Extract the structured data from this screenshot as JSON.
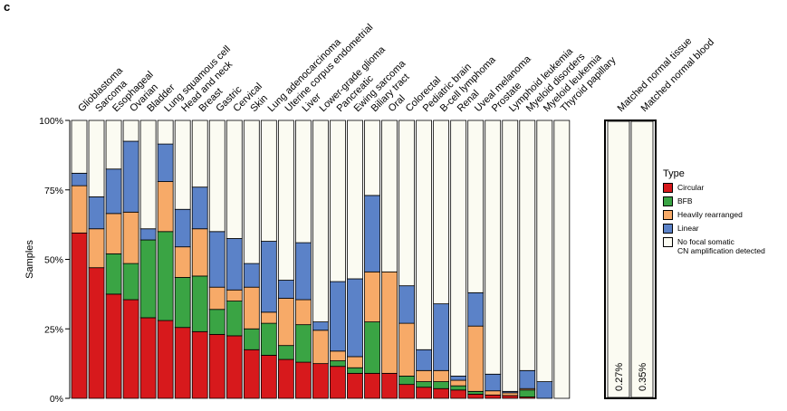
{
  "panel_letter": "c",
  "chart_data": {
    "type": "bar",
    "stacked": true,
    "ylabel": "Samples",
    "ylim": [
      0,
      100
    ],
    "yticks": [
      "0%",
      "25%",
      "50%",
      "75%",
      "100%"
    ],
    "legend": {
      "title": "Type",
      "position": "right",
      "entries": [
        {
          "label": "Circular",
          "color": "#d7191c"
        },
        {
          "label": "BFB",
          "color": "#3aa444"
        },
        {
          "label": "Heavily rearranged",
          "color": "#f7aa68"
        },
        {
          "label": "Linear",
          "color": "#5b82c8"
        },
        {
          "label": "No focal somatic\nCN amplification detected",
          "color": "#fbfbf2"
        }
      ]
    },
    "categories": [
      "Glioblastoma",
      "Sarcoma",
      "Esophageal",
      "Ovarian",
      "Bladder",
      "Lung squamous cell",
      "Head and neck",
      "Breast",
      "Gastric",
      "Cervical",
      "Skin",
      "Lung adenocarcinoma",
      "Uterine corpus endometrial",
      "Liver",
      "Lower-grade glioma",
      "Pancreatic",
      "Ewing sarcoma",
      "Biliary tract",
      "Oral",
      "Colorectal",
      "Pediatric brain",
      "B-cell lymphoma",
      "Renal",
      "Uveal melanoma",
      "Prostate",
      "Lymphoid leukemia",
      "Myeloid disorders",
      "Myeloid leukemia",
      "Thyroid papillary"
    ],
    "series": [
      {
        "name": "Circular",
        "color": "#d7191c",
        "values": [
          59.5,
          47,
          37.5,
          35.5,
          29,
          28,
          25.5,
          24,
          23,
          22.5,
          17.5,
          15.5,
          14,
          13,
          12.5,
          11.5,
          9,
          9,
          9,
          5,
          4,
          3.5,
          3,
          1.5,
          1.2,
          1,
          0.5,
          0,
          0
        ]
      },
      {
        "name": "BFB",
        "color": "#3aa444",
        "values": [
          0,
          0,
          14.5,
          13,
          28,
          32,
          18,
          20,
          9,
          12.5,
          7.5,
          11.5,
          5,
          13.5,
          0,
          2,
          2,
          18.5,
          0,
          3,
          2,
          2.5,
          1.5,
          1,
          0,
          0,
          2.5,
          0,
          0
        ]
      },
      {
        "name": "Heavily rearranged",
        "color": "#f7aa68",
        "values": [
          17,
          14,
          14.5,
          18.5,
          0,
          18,
          11,
          17,
          8,
          4,
          15,
          4,
          17,
          9,
          12,
          3.5,
          4,
          18,
          36.5,
          19,
          4,
          4,
          2,
          23.5,
          1.5,
          1,
          0.5,
          0,
          0
        ]
      },
      {
        "name": "Linear",
        "color": "#5b82c8",
        "values": [
          4.5,
          11.5,
          16,
          25.5,
          4,
          13.5,
          13.5,
          15,
          20,
          18.5,
          8.5,
          25.5,
          6.5,
          20.5,
          3,
          25,
          28,
          27.5,
          0,
          13.5,
          7.5,
          24,
          1.5,
          12,
          6,
          0.5,
          6.5,
          6,
          0
        ]
      },
      {
        "name": "No focal somatic\nCN amplification detected",
        "color": "#fbfbf2",
        "values": [
          19,
          27.5,
          17.5,
          7.5,
          39,
          8.5,
          32,
          24,
          40,
          42.5,
          51.5,
          43.5,
          57.5,
          44,
          72.5,
          58,
          57,
          27,
          54.5,
          59.5,
          82.5,
          66,
          92,
          62,
          91.3,
          97.5,
          90,
          94,
          100
        ]
      }
    ],
    "normal": {
      "categories": [
        "Matched normal tissue",
        "Matched normal blood"
      ],
      "labels": [
        "0.27%",
        "0.35%"
      ]
    }
  }
}
